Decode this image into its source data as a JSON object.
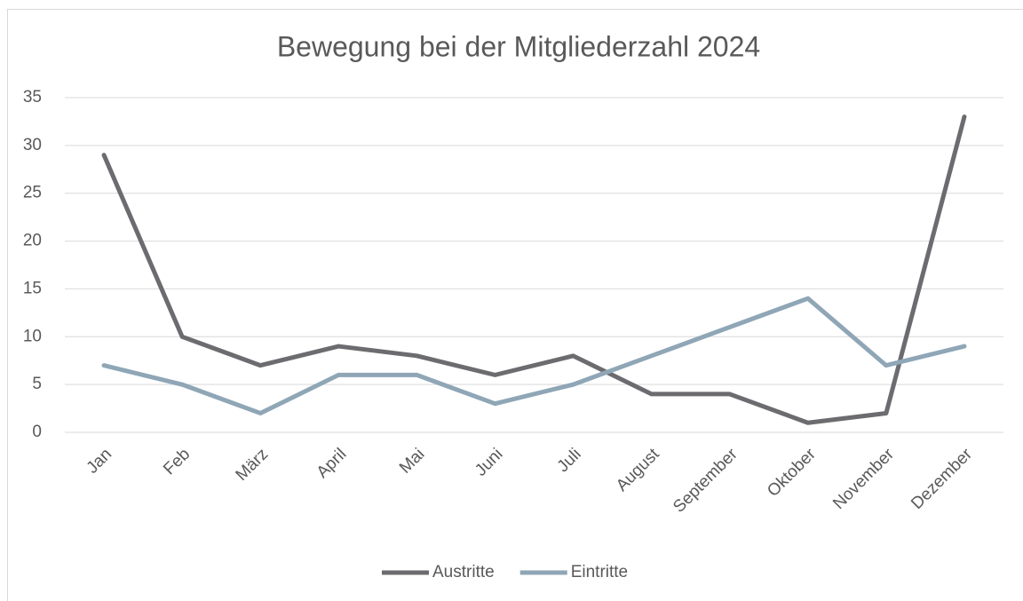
{
  "chart_data": {
    "type": "line",
    "title": "Bewegung bei der Mitgliederzahl 2024",
    "categories": [
      "Jan",
      "Feb",
      "März",
      "April",
      "Mai",
      "Juni",
      "Juli",
      "August",
      "September",
      "Oktober",
      "November",
      "Dezember"
    ],
    "series": [
      {
        "name": "Austritte",
        "color": "#6c6c70",
        "values": [
          29,
          10,
          7,
          9,
          8,
          6,
          8,
          4,
          4,
          1,
          2,
          33
        ]
      },
      {
        "name": "Eintritte",
        "color": "#8fa6b6",
        "values": [
          7,
          5,
          2,
          6,
          6,
          3,
          5,
          8,
          11,
          14,
          7,
          9
        ]
      }
    ],
    "ylim": [
      0,
      35
    ],
    "yticks": [
      0,
      5,
      10,
      15,
      20,
      25,
      30,
      35
    ],
    "grid": true,
    "legend": "bottom"
  }
}
